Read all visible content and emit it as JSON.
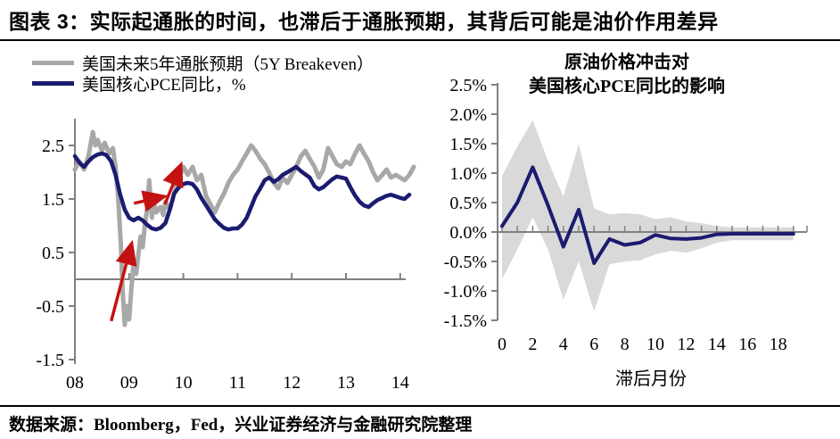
{
  "header": {
    "title": "图表 3：实际起通胀的时间，也滞后于通胀预期，其背后可能是油价作用差异"
  },
  "footer": {
    "source": "数据来源：Bloomberg，Fed，兴业证券经济与金融研究院整理"
  },
  "colors": {
    "navy": "#1b1b70",
    "gray_line": "#a8a8a8",
    "band": "#d9d9d9",
    "red": "#c41212",
    "axis": "#808080",
    "text": "#000000"
  },
  "chart_data": [
    {
      "type": "line",
      "title": "",
      "xlabel": "",
      "ylabel": "",
      "ylim": [
        -1.5,
        3.0
      ],
      "xlim": [
        2008,
        2014.3
      ],
      "grid": false,
      "legend_position": "top-left",
      "legend": [
        {
          "name": "美国未来5年通胀预期（5Y Breakeven）",
          "color_key": "gray_line"
        },
        {
          "name": "美国核心PCE同比，%",
          "color_key": "navy"
        }
      ],
      "y_ticks": {
        "values": [
          2.5,
          1.5,
          0.5,
          -0.5,
          -1.5
        ],
        "labels": [
          "2.5",
          "1.5",
          "0.5",
          "-0.5",
          "-1.5"
        ]
      },
      "x_ticks": {
        "years": [
          2008,
          2009,
          2010,
          2011,
          2012,
          2013,
          2014
        ],
        "labels": [
          "08",
          "09",
          "10",
          "11",
          "12",
          "13",
          "14"
        ]
      },
      "series": [
        {
          "name": "美国未来5年通胀预期（5Y Breakeven）",
          "color_key": "gray_line",
          "points": [
            [
              2008.0,
              2.05
            ],
            [
              2008.08,
              2.2
            ],
            [
              2008.17,
              2.05
            ],
            [
              2008.25,
              2.3
            ],
            [
              2008.33,
              2.75
            ],
            [
              2008.38,
              2.5
            ],
            [
              2008.42,
              2.6
            ],
            [
              2008.5,
              2.4
            ],
            [
              2008.55,
              2.55
            ],
            [
              2008.63,
              2.35
            ],
            [
              2008.7,
              2.45
            ],
            [
              2008.75,
              2.1
            ],
            [
              2008.8,
              1.5
            ],
            [
              2008.85,
              0.6
            ],
            [
              2008.88,
              -0.2
            ],
            [
              2008.92,
              -0.85
            ],
            [
              2008.95,
              -0.5
            ],
            [
              2009.0,
              -0.75
            ],
            [
              2009.04,
              -0.2
            ],
            [
              2009.08,
              0.3
            ],
            [
              2009.13,
              0.1
            ],
            [
              2009.17,
              0.45
            ],
            [
              2009.21,
              0.8
            ],
            [
              2009.25,
              0.6
            ],
            [
              2009.29,
              1.0
            ],
            [
              2009.33,
              1.3
            ],
            [
              2009.37,
              1.85
            ],
            [
              2009.42,
              1.15
            ],
            [
              2009.46,
              1.45
            ],
            [
              2009.5,
              1.25
            ],
            [
              2009.58,
              1.35
            ],
            [
              2009.63,
              1.2
            ],
            [
              2009.67,
              1.45
            ],
            [
              2009.75,
              1.3
            ],
            [
              2009.83,
              1.6
            ],
            [
              2009.92,
              1.9
            ],
            [
              2010.0,
              2.1
            ],
            [
              2010.08,
              1.95
            ],
            [
              2010.17,
              2.1
            ],
            [
              2010.25,
              1.85
            ],
            [
              2010.33,
              1.95
            ],
            [
              2010.42,
              1.55
            ],
            [
              2010.5,
              1.4
            ],
            [
              2010.58,
              1.25
            ],
            [
              2010.67,
              1.45
            ],
            [
              2010.75,
              1.6
            ],
            [
              2010.83,
              1.8
            ],
            [
              2010.92,
              1.95
            ],
            [
              2011.0,
              2.05
            ],
            [
              2011.08,
              2.2
            ],
            [
              2011.17,
              2.35
            ],
            [
              2011.25,
              2.5
            ],
            [
              2011.33,
              2.4
            ],
            [
              2011.42,
              2.25
            ],
            [
              2011.5,
              2.15
            ],
            [
              2011.58,
              2.0
            ],
            [
              2011.67,
              1.8
            ],
            [
              2011.75,
              1.7
            ],
            [
              2011.83,
              1.9
            ],
            [
              2011.92,
              1.8
            ],
            [
              2012.0,
              1.95
            ],
            [
              2012.08,
              2.1
            ],
            [
              2012.17,
              2.3
            ],
            [
              2012.25,
              2.4
            ],
            [
              2012.33,
              2.25
            ],
            [
              2012.42,
              2.1
            ],
            [
              2012.5,
              1.9
            ],
            [
              2012.58,
              2.05
            ],
            [
              2012.67,
              2.45
            ],
            [
              2012.75,
              2.3
            ],
            [
              2012.83,
              2.15
            ],
            [
              2012.92,
              2.1
            ],
            [
              2013.0,
              2.2
            ],
            [
              2013.08,
              2.15
            ],
            [
              2013.17,
              2.35
            ],
            [
              2013.25,
              2.5
            ],
            [
              2013.33,
              2.35
            ],
            [
              2013.42,
              2.2
            ],
            [
              2013.5,
              2.0
            ],
            [
              2013.58,
              1.85
            ],
            [
              2013.67,
              1.95
            ],
            [
              2013.75,
              2.05
            ],
            [
              2013.83,
              1.9
            ],
            [
              2013.92,
              1.95
            ],
            [
              2014.0,
              1.9
            ],
            [
              2014.08,
              1.85
            ],
            [
              2014.17,
              1.95
            ],
            [
              2014.25,
              2.1
            ]
          ]
        },
        {
          "name": "美国核心PCE同比，%",
          "color_key": "navy",
          "points": [
            [
              2008.0,
              2.3
            ],
            [
              2008.08,
              2.18
            ],
            [
              2008.17,
              2.1
            ],
            [
              2008.25,
              2.2
            ],
            [
              2008.33,
              2.28
            ],
            [
              2008.42,
              2.33
            ],
            [
              2008.5,
              2.35
            ],
            [
              2008.58,
              2.32
            ],
            [
              2008.67,
              2.2
            ],
            [
              2008.75,
              1.95
            ],
            [
              2008.83,
              1.6
            ],
            [
              2008.92,
              1.3
            ],
            [
              2009.0,
              1.15
            ],
            [
              2009.08,
              1.1
            ],
            [
              2009.17,
              1.15
            ],
            [
              2009.25,
              1.1
            ],
            [
              2009.33,
              1.02
            ],
            [
              2009.42,
              0.95
            ],
            [
              2009.5,
              0.93
            ],
            [
              2009.58,
              0.96
            ],
            [
              2009.67,
              1.05
            ],
            [
              2009.75,
              1.3
            ],
            [
              2009.83,
              1.6
            ],
            [
              2009.92,
              1.72
            ],
            [
              2010.0,
              1.78
            ],
            [
              2010.08,
              1.8
            ],
            [
              2010.17,
              1.78
            ],
            [
              2010.25,
              1.68
            ],
            [
              2010.33,
              1.52
            ],
            [
              2010.42,
              1.38
            ],
            [
              2010.5,
              1.25
            ],
            [
              2010.58,
              1.12
            ],
            [
              2010.67,
              1.03
            ],
            [
              2010.75,
              0.96
            ],
            [
              2010.83,
              0.93
            ],
            [
              2010.92,
              0.95
            ],
            [
              2011.0,
              0.95
            ],
            [
              2011.08,
              1.02
            ],
            [
              2011.17,
              1.15
            ],
            [
              2011.25,
              1.35
            ],
            [
              2011.33,
              1.55
            ],
            [
              2011.42,
              1.7
            ],
            [
              2011.5,
              1.85
            ],
            [
              2011.58,
              1.9
            ],
            [
              2011.67,
              1.82
            ],
            [
              2011.75,
              1.87
            ],
            [
              2011.83,
              1.95
            ],
            [
              2011.92,
              2.0
            ],
            [
              2012.0,
              2.05
            ],
            [
              2012.08,
              2.1
            ],
            [
              2012.17,
              2.02
            ],
            [
              2012.25,
              1.96
            ],
            [
              2012.33,
              1.9
            ],
            [
              2012.42,
              1.74
            ],
            [
              2012.5,
              1.68
            ],
            [
              2012.58,
              1.72
            ],
            [
              2012.67,
              1.8
            ],
            [
              2012.75,
              1.87
            ],
            [
              2012.83,
              1.92
            ],
            [
              2012.92,
              1.9
            ],
            [
              2013.0,
              1.88
            ],
            [
              2013.08,
              1.72
            ],
            [
              2013.17,
              1.56
            ],
            [
              2013.25,
              1.45
            ],
            [
              2013.33,
              1.38
            ],
            [
              2013.42,
              1.35
            ],
            [
              2013.5,
              1.42
            ],
            [
              2013.58,
              1.48
            ],
            [
              2013.67,
              1.52
            ],
            [
              2013.75,
              1.56
            ],
            [
              2013.83,
              1.58
            ],
            [
              2013.92,
              1.55
            ],
            [
              2014.0,
              1.52
            ],
            [
              2014.08,
              1.5
            ],
            [
              2014.17,
              1.58
            ]
          ]
        }
      ],
      "annotations": {
        "arrows": [
          {
            "from": [
              2008.67,
              -0.78
            ],
            "to": [
              2009.05,
              0.68
            ]
          },
          {
            "from": [
              2009.09,
              1.42
            ],
            "to": [
              2009.66,
              1.55
            ]
          },
          {
            "from": [
              2009.66,
              1.4
            ],
            "to": [
              2009.96,
              2.15
            ]
          }
        ]
      }
    },
    {
      "type": "line",
      "title_lines": [
        "原油价格冲击对",
        "美国核心PCE同比的影响"
      ],
      "xlabel": "滞后月份",
      "ylabel": "",
      "ylim": [
        -1.5,
        2.5
      ],
      "xlim": [
        0,
        19
      ],
      "grid": false,
      "y_ticks": {
        "values": [
          2.5,
          2.0,
          1.5,
          1.0,
          0.5,
          0.0,
          -0.5,
          -1.0,
          -1.5
        ],
        "labels": [
          "2.5%",
          "2.0%",
          "1.5%",
          "1.0%",
          "0.5%",
          "0.0%",
          "-0.5%",
          "-1.0%",
          "-1.5%"
        ]
      },
      "x_ticks": {
        "months": [
          0,
          2,
          4,
          6,
          8,
          10,
          12,
          14,
          16,
          18
        ],
        "labels": [
          "0",
          "2",
          "4",
          "6",
          "8",
          "10",
          "12",
          "14",
          "16",
          "18"
        ]
      },
      "months": [
        0,
        1,
        2,
        3,
        4,
        5,
        6,
        7,
        8,
        9,
        10,
        11,
        12,
        13,
        14,
        15,
        16,
        17,
        18,
        19
      ],
      "line": [
        0.1,
        0.5,
        1.1,
        0.45,
        -0.25,
        0.38,
        -0.53,
        -0.12,
        -0.22,
        -0.18,
        -0.05,
        -0.11,
        -0.12,
        -0.1,
        -0.04,
        -0.03,
        -0.03,
        -0.03,
        -0.03,
        -0.03
      ],
      "band_upper": [
        0.95,
        1.45,
        1.9,
        1.2,
        0.6,
        1.5,
        0.4,
        0.3,
        0.32,
        0.3,
        0.22,
        0.25,
        0.18,
        0.15,
        0.1,
        0.08,
        0.08,
        0.08,
        0.08,
        0.08
      ],
      "band_lower": [
        -0.8,
        -0.3,
        0.25,
        -0.3,
        -1.15,
        -0.5,
        -1.35,
        -0.55,
        -0.5,
        -0.48,
        -0.38,
        -0.32,
        -0.35,
        -0.28,
        -0.18,
        -0.14,
        -0.14,
        -0.14,
        -0.14,
        -0.14
      ]
    }
  ]
}
